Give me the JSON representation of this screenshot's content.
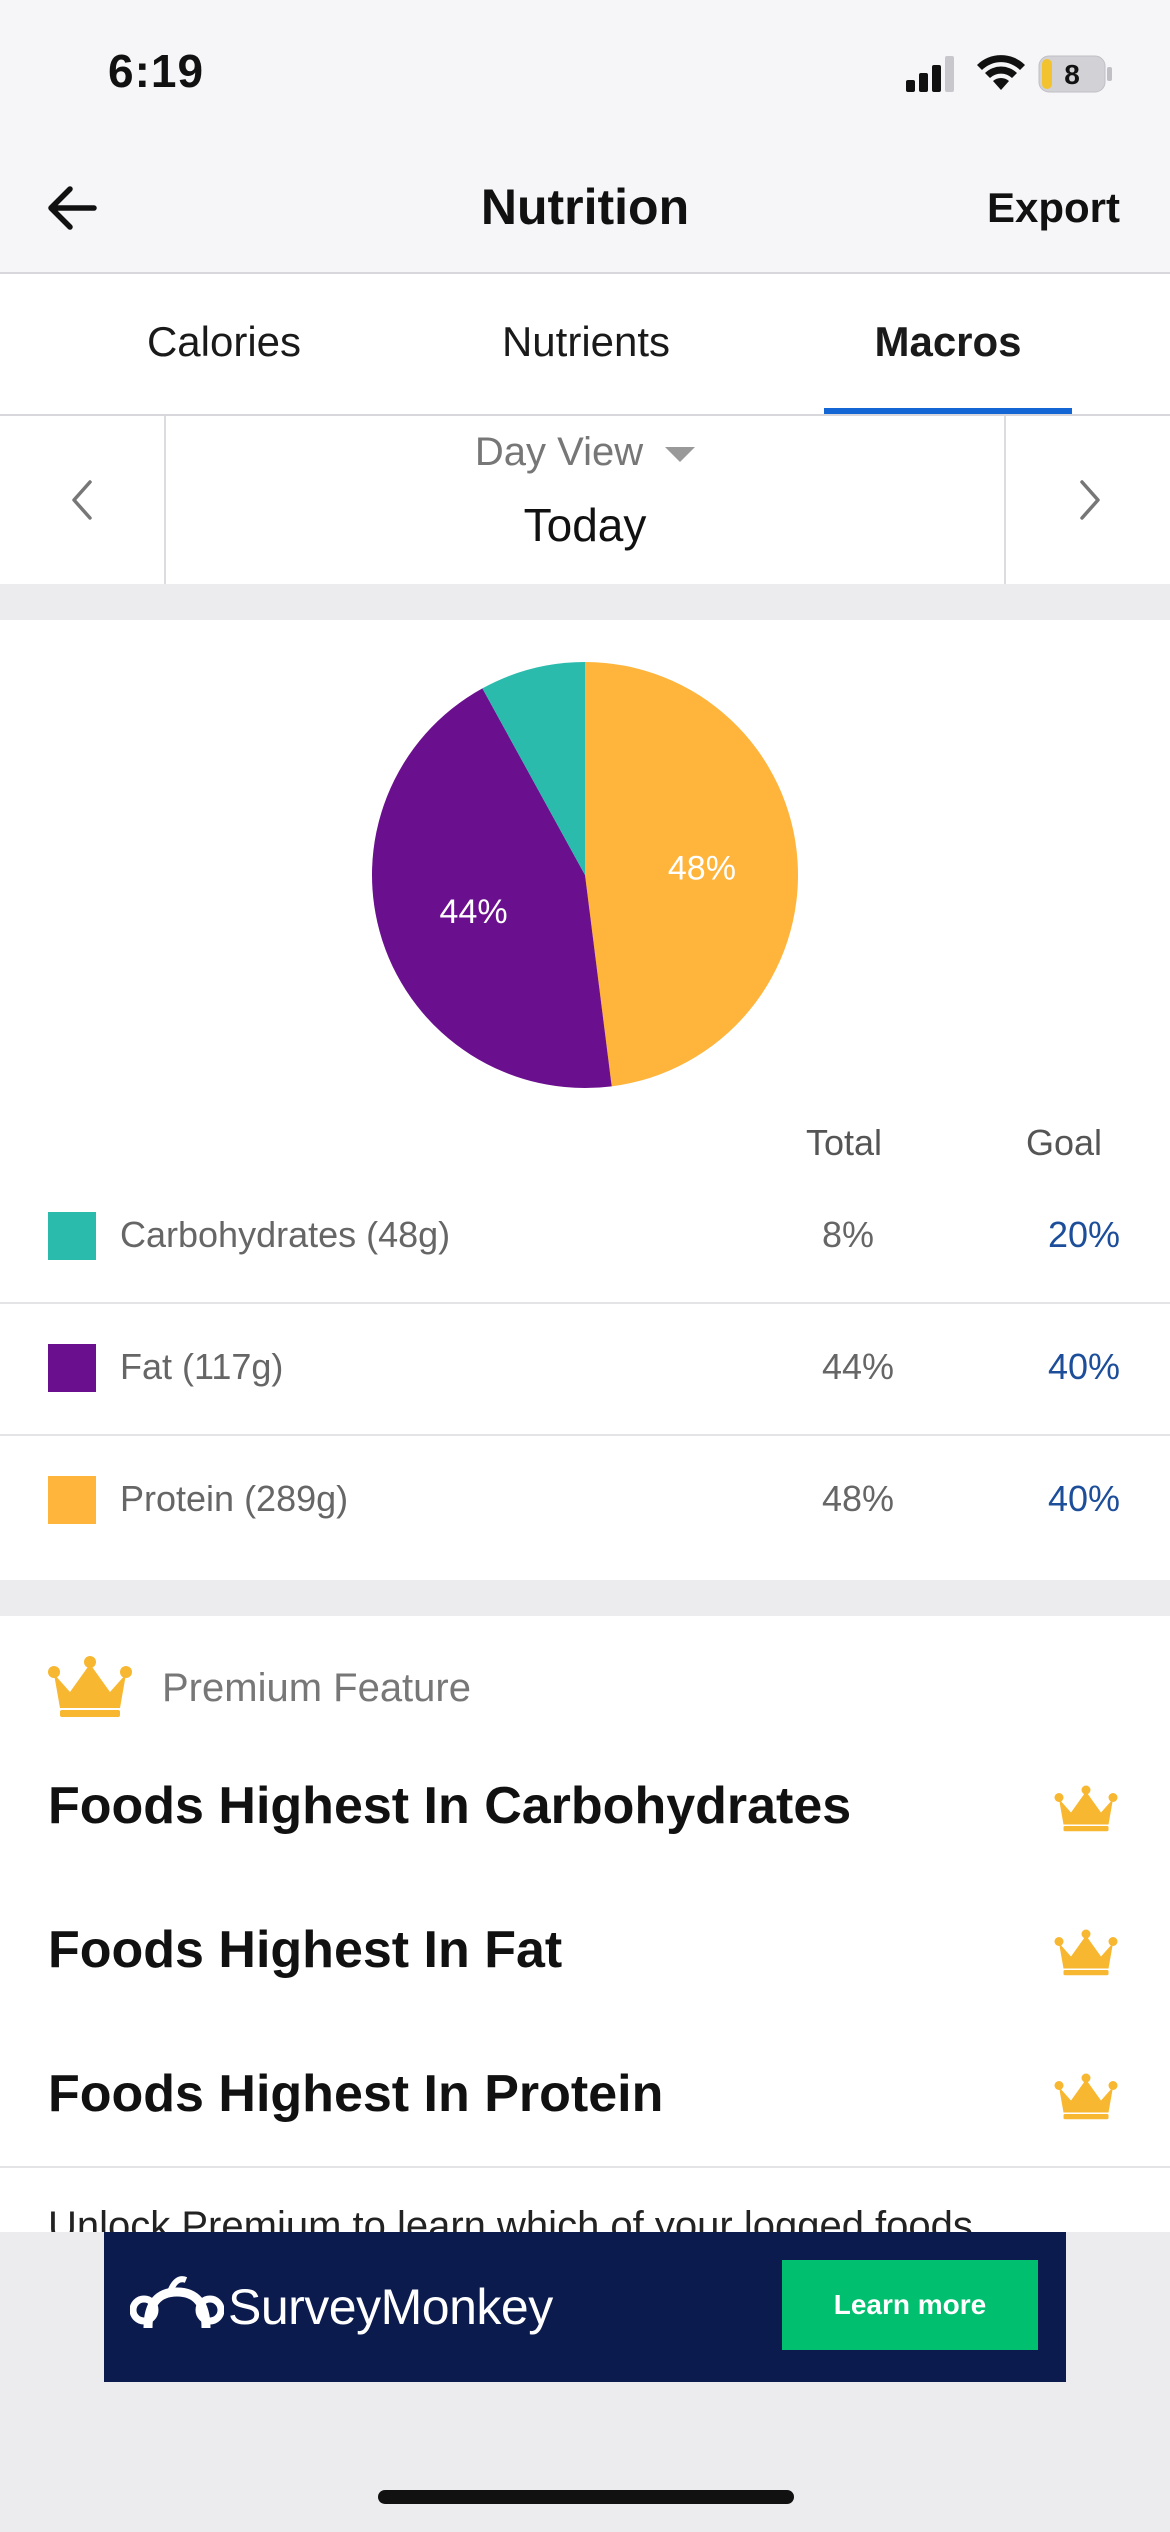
{
  "status_bar": {
    "time": "6:19",
    "battery": "8"
  },
  "header": {
    "title": "Nutrition",
    "export_label": "Export",
    "back_icon": "arrow-left-icon"
  },
  "tabs": [
    {
      "label": "Calories",
      "active": false
    },
    {
      "label": "Nutrients",
      "active": false
    },
    {
      "label": "Macros",
      "active": true
    }
  ],
  "day_view": {
    "mode": "Day View",
    "value": "Today"
  },
  "macros": {
    "columns": {
      "total": "Total",
      "goal": "Goal"
    },
    "rows": [
      {
        "label": "Carbohydrates (48g)",
        "total": "8%",
        "goal": "20%",
        "color": "#2bbbad"
      },
      {
        "label": "Fat (117g)",
        "total": "44%",
        "goal": "40%",
        "color": "#6a0f8e"
      },
      {
        "label": "Protein (289g)",
        "total": "48%",
        "goal": "40%",
        "color": "#ffb43c"
      }
    ]
  },
  "chart_data": {
    "type": "pie",
    "categories": [
      "Carbohydrates",
      "Fat",
      "Protein"
    ],
    "values": [
      8,
      44,
      48
    ],
    "colors": [
      "#2bbbad",
      "#6a0f8e",
      "#ffb43c"
    ],
    "data_labels": [
      "",
      "44%",
      "48%"
    ]
  },
  "premium": {
    "label": "Premium Feature",
    "features": [
      "Foods Highest In Carbohydrates",
      "Foods Highest In Fat",
      "Foods Highest In Protein"
    ],
    "unlock_text": "Unlock Premium to learn which of your logged foods"
  },
  "ad": {
    "brand": "SurveyMonkey",
    "cta": "Learn more"
  }
}
